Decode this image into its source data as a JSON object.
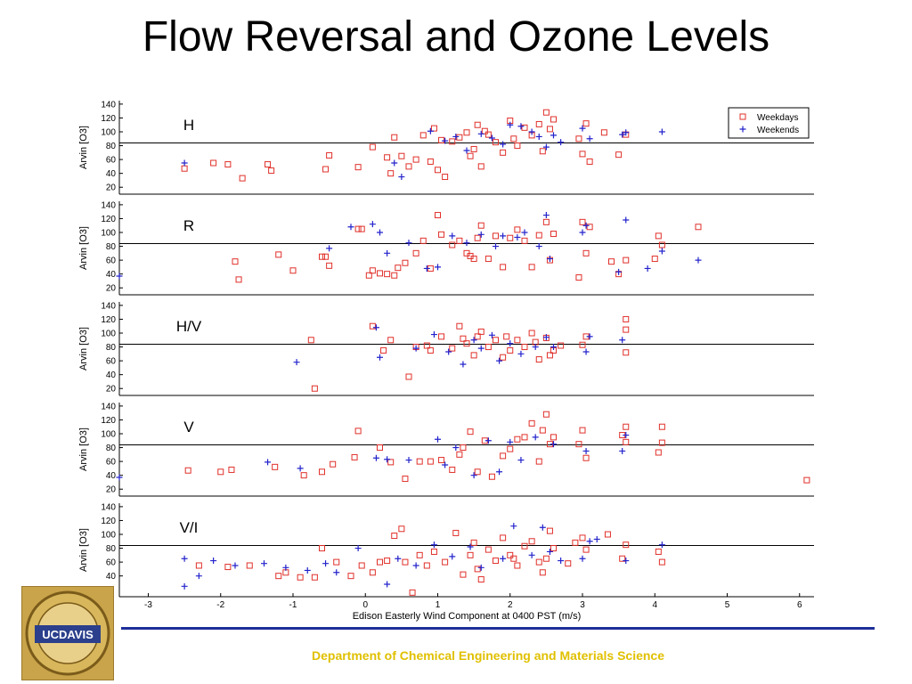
{
  "slide": {
    "title": "Flow Reversal and Ozone Levels",
    "footer": "Department of Chemical Engineering and Materials Science",
    "logo_text": "UCDAVIS",
    "footer_line_color": "#1e2f99",
    "footer_text_color": "#e0c000"
  },
  "chart_data": {
    "type": "scatter",
    "xlabel": "Edison Easterly Wind Component at 0400 PST (m/s)",
    "xlim": [
      -3.4,
      6.2
    ],
    "xticks": [
      -3,
      -2,
      -1,
      0,
      1,
      2,
      3,
      4,
      5,
      6
    ],
    "ylabel": "Arvin [O3]",
    "ylim": [
      10,
      145
    ],
    "yticks": [
      20,
      40,
      60,
      80,
      100,
      120,
      140
    ],
    "reference_line_y": 84,
    "legend": {
      "placement": "top-right",
      "entries": [
        "Weekdays",
        "Weekends"
      ]
    },
    "series_styles": {
      "Weekdays": {
        "marker": "square",
        "color": "#e0302a"
      },
      "Weekends": {
        "marker": "plus",
        "color": "#2222cc"
      }
    },
    "panels": [
      {
        "label": "H",
        "series": [
          {
            "name": "Weekdays",
            "x": [
              -2.5,
              -2.1,
              -1.9,
              -1.7,
              -1.35,
              -1.3,
              -0.55,
              -0.5,
              -0.1,
              0.1,
              0.3,
              0.35,
              0.4,
              0.5,
              0.6,
              0.7,
              0.8,
              0.9,
              1.0,
              1.05,
              1.1,
              1.2,
              1.3,
              1.4,
              1.5,
              1.55,
              1.6,
              1.7,
              1.8,
              1.9,
              2.0,
              2.1,
              2.2,
              2.3,
              2.4,
              2.5,
              2.55,
              2.6,
              3.0,
              3.05,
              3.1,
              3.3,
              3.5,
              3.6,
              0.95,
              1.45,
              2.05,
              2.45,
              2.95,
              1.65
            ],
            "y": [
              47,
              55,
              53,
              33,
              53,
              44,
              46,
              66,
              49,
              78,
              63,
              40,
              92,
              65,
              50,
              60,
              95,
              57,
              45,
              88,
              35,
              86,
              92,
              99,
              75,
              110,
              50,
              96,
              85,
              70,
              116,
              80,
              106,
              95,
              111,
              128,
              104,
              118,
              68,
              112,
              57,
              99,
              67,
              96,
              105,
              65,
              90,
              72,
              90,
              101
            ]
          },
          {
            "name": "Weekends",
            "x": [
              -2.5,
              0.4,
              0.5,
              0.9,
              1.1,
              1.4,
              1.6,
              1.75,
              2.0,
              2.15,
              2.3,
              2.4,
              2.5,
              2.6,
              3.0,
              3.1,
              3.55,
              3.6,
              4.1,
              1.9,
              2.7,
              1.25
            ],
            "y": [
              55,
              55,
              35,
              101,
              87,
              73,
              97,
              91,
              110,
              108,
              100,
              93,
              78,
              95,
              105,
              90,
              96,
              99,
              100,
              82,
              85,
              93
            ]
          }
        ]
      },
      {
        "label": "R",
        "series": [
          {
            "name": "Weekdays",
            "x": [
              -1.8,
              -1.75,
              -1.2,
              -1.0,
              -0.6,
              -0.55,
              -0.5,
              -0.1,
              -0.05,
              0.05,
              0.1,
              0.2,
              0.3,
              0.4,
              0.45,
              0.55,
              0.7,
              0.8,
              0.9,
              1.0,
              1.05,
              1.2,
              1.3,
              1.4,
              1.5,
              1.55,
              1.6,
              1.7,
              1.8,
              1.9,
              2.0,
              2.1,
              2.2,
              2.3,
              2.4,
              2.5,
              2.55,
              2.6,
              2.95,
              3.0,
              3.05,
              3.1,
              3.4,
              3.5,
              3.6,
              4.0,
              4.05,
              4.1,
              4.6,
              1.45
            ],
            "y": [
              58,
              32,
              68,
              45,
              65,
              65,
              52,
              105,
              105,
              38,
              45,
              41,
              40,
              38,
              49,
              56,
              70,
              88,
              48,
              125,
              97,
              82,
              88,
              70,
              62,
              92,
              110,
              62,
              95,
              50,
              92,
              104,
              88,
              50,
              96,
              115,
              60,
              98,
              35,
              115,
              70,
              108,
              58,
              40,
              60,
              62,
              95,
              82,
              108,
              66
            ]
          },
          {
            "name": "Weekends",
            "x": [
              -3.4,
              -0.5,
              -0.2,
              0.1,
              0.2,
              0.3,
              0.6,
              0.85,
              1.0,
              1.2,
              1.4,
              1.6,
              1.8,
              1.9,
              2.1,
              2.2,
              2.4,
              2.5,
              2.55,
              3.0,
              3.05,
              3.5,
              3.6,
              3.9,
              4.1,
              4.6
            ],
            "y": [
              37,
              77,
              108,
              112,
              100,
              70,
              85,
              48,
              50,
              95,
              85,
              97,
              80,
              95,
              93,
              100,
              80,
              125,
              62,
              100,
              110,
              43,
              118,
              48,
              73,
              60
            ]
          }
        ]
      },
      {
        "label": "H/V",
        "series": [
          {
            "name": "Weekdays",
            "x": [
              -0.75,
              -0.7,
              0.1,
              0.25,
              0.35,
              0.6,
              0.7,
              0.85,
              0.9,
              1.05,
              1.2,
              1.3,
              1.4,
              1.5,
              1.55,
              1.6,
              1.7,
              1.8,
              1.9,
              2.0,
              2.1,
              2.2,
              2.3,
              2.4,
              2.5,
              2.55,
              2.6,
              2.7,
              3.0,
              3.05,
              3.6,
              3.6,
              3.6,
              1.35,
              1.95,
              2.35
            ],
            "y": [
              90,
              20,
              110,
              75,
              90,
              37,
              80,
              82,
              75,
              95,
              78,
              110,
              85,
              68,
              95,
              102,
              80,
              90,
              65,
              75,
              90,
              80,
              100,
              62,
              93,
              68,
              75,
              82,
              83,
              95,
              120,
              105,
              72,
              92,
              95,
              87
            ]
          },
          {
            "name": "Weekends",
            "x": [
              -0.95,
              0.15,
              0.2,
              0.7,
              0.95,
              1.15,
              1.35,
              1.5,
              1.6,
              1.75,
              1.85,
              2.0,
              2.15,
              2.35,
              2.5,
              2.6,
              3.05,
              3.1,
              3.55
            ],
            "y": [
              58,
              108,
              65,
              78,
              98,
              73,
              55,
              90,
              78,
              97,
              60,
              85,
              70,
              80,
              94,
              80,
              73,
              95,
              90
            ]
          }
        ]
      },
      {
        "label": "V",
        "series": [
          {
            "name": "Weekdays",
            "x": [
              -2.45,
              -2.0,
              -1.85,
              -1.25,
              -0.85,
              -0.6,
              -0.45,
              -0.15,
              -0.1,
              0.2,
              0.35,
              0.55,
              0.75,
              0.9,
              1.05,
              1.2,
              1.35,
              1.45,
              1.55,
              1.65,
              1.75,
              1.9,
              2.0,
              2.1,
              2.2,
              2.3,
              2.4,
              2.45,
              2.5,
              2.55,
              2.95,
              3.0,
              3.05,
              3.55,
              3.6,
              3.6,
              4.05,
              4.1,
              4.1,
              6.1,
              1.3,
              2.6
            ],
            "y": [
              47,
              45,
              48,
              52,
              40,
              45,
              56,
              66,
              104,
              80,
              59,
              35,
              60,
              60,
              62,
              48,
              80,
              103,
              45,
              90,
              38,
              68,
              78,
              92,
              95,
              115,
              60,
              105,
              128,
              85,
              85,
              105,
              65,
              98,
              88,
              110,
              73,
              87,
              110,
              33,
              70,
              95
            ]
          },
          {
            "name": "Weekends",
            "x": [
              -3.4,
              -1.35,
              -0.9,
              0.15,
              0.3,
              0.6,
              1.0,
              1.1,
              1.25,
              1.5,
              1.7,
              1.85,
              2.0,
              2.15,
              2.35,
              2.6,
              3.05,
              3.55,
              3.6
            ],
            "y": [
              37,
              59,
              50,
              65,
              63,
              62,
              92,
              55,
              80,
              40,
              90,
              45,
              88,
              62,
              95,
              85,
              75,
              75,
              98
            ]
          }
        ]
      },
      {
        "label": "V/I",
        "series": [
          {
            "name": "Weekdays",
            "x": [
              -2.3,
              -1.9,
              -1.6,
              -1.2,
              -1.1,
              -0.9,
              -0.7,
              -0.6,
              -0.4,
              -0.2,
              -0.05,
              0.1,
              0.2,
              0.3,
              0.4,
              0.5,
              0.55,
              0.65,
              0.75,
              0.85,
              0.95,
              1.1,
              1.25,
              1.35,
              1.45,
              1.5,
              1.6,
              1.7,
              1.8,
              1.9,
              2.0,
              2.1,
              2.2,
              2.3,
              2.4,
              2.5,
              2.55,
              2.6,
              2.8,
              2.9,
              3.0,
              3.05,
              3.35,
              3.55,
              3.6,
              4.05,
              4.1,
              1.55,
              2.05,
              2.45
            ],
            "y": [
              55,
              53,
              55,
              40,
              45,
              38,
              38,
              80,
              60,
              40,
              55,
              45,
              60,
              62,
              98,
              108,
              60,
              16,
              70,
              55,
              75,
              60,
              102,
              42,
              70,
              88,
              35,
              78,
              62,
              95,
              70,
              55,
              83,
              90,
              60,
              65,
              105,
              80,
              58,
              88,
              95,
              78,
              100,
              65,
              85,
              75,
              60,
              50,
              65,
              45
            ]
          },
          {
            "name": "Weekends",
            "x": [
              -2.5,
              -2.5,
              -2.3,
              -2.1,
              -1.8,
              -1.4,
              -1.1,
              -0.8,
              -0.55,
              -0.4,
              -0.1,
              0.3,
              0.45,
              0.7,
              0.95,
              1.2,
              1.45,
              1.6,
              1.9,
              2.05,
              2.3,
              2.45,
              2.55,
              2.7,
              3.0,
              3.1,
              3.2,
              3.6,
              4.1
            ],
            "y": [
              65,
              25,
              40,
              62,
              55,
              58,
              52,
              48,
              58,
              45,
              80,
              28,
              65,
              55,
              85,
              68,
              82,
              52,
              65,
              112,
              70,
              110,
              75,
              62,
              65,
              90,
              93,
              62,
              85
            ]
          }
        ]
      }
    ]
  }
}
